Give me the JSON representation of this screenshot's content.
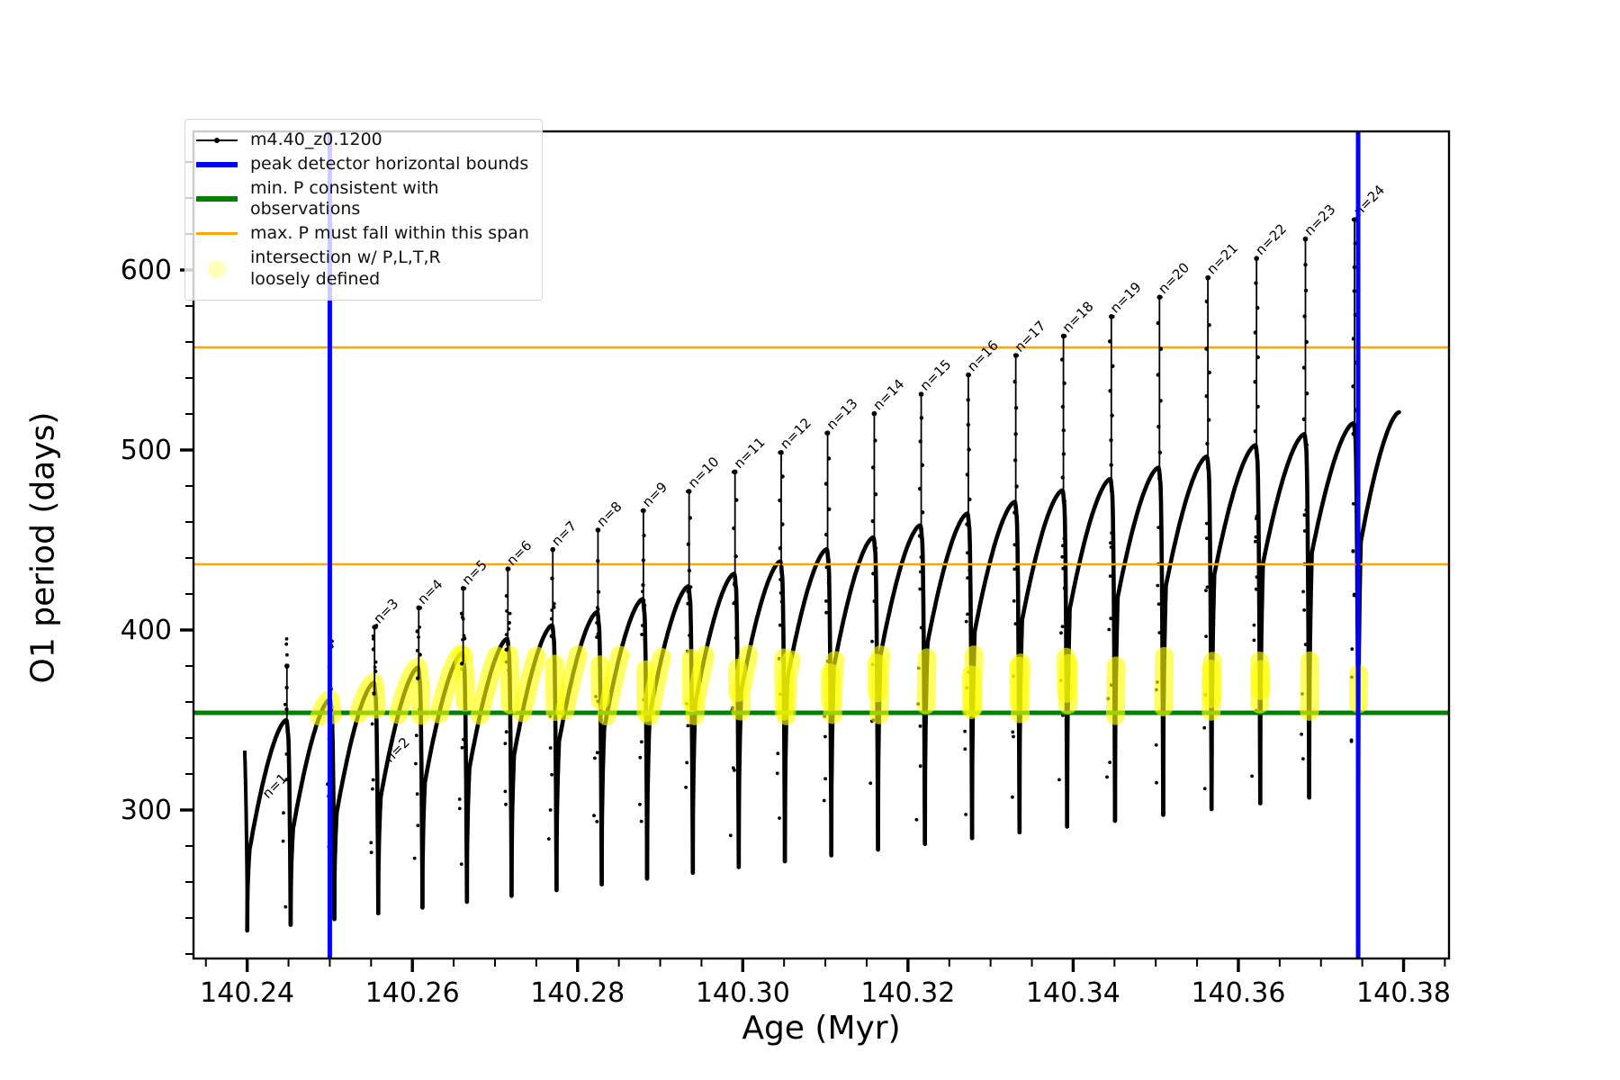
{
  "figure": {
    "background": "#ffffff",
    "frame_color": "#000000"
  },
  "axes": {
    "xlabel": "Age (Myr)",
    "ylabel": "O1 period (days)",
    "xlim": [
      140.2335,
      140.3855
    ],
    "ylim": [
      217.5,
      677.0
    ],
    "x_ticks": [
      {
        "v": 140.24,
        "label": "140.24"
      },
      {
        "v": 140.26,
        "label": "140.26"
      },
      {
        "v": 140.28,
        "label": "140.28"
      },
      {
        "v": 140.3,
        "label": "140.30"
      },
      {
        "v": 140.32,
        "label": "140.32"
      },
      {
        "v": 140.34,
        "label": "140.34"
      },
      {
        "v": 140.36,
        "label": "140.36"
      },
      {
        "v": 140.38,
        "label": "140.38"
      }
    ],
    "x_minor_step": 0.005,
    "y_ticks": [
      {
        "v": 300,
        "label": "300"
      },
      {
        "v": 400,
        "label": "400"
      },
      {
        "v": 500,
        "label": "500"
      },
      {
        "v": 600,
        "label": "600"
      }
    ],
    "y_minor_step": 20
  },
  "legend": {
    "items": [
      {
        "label": "m4.40_z0.1200",
        "color": "#000000",
        "type": "line-dot"
      },
      {
        "label": "peak detector horizontal bounds",
        "color": "#0000ff",
        "type": "thick-line"
      },
      {
        "label": "min. P consistent with observations",
        "color": "#008000",
        "type": "thick-line"
      },
      {
        "label": "max. P must fall within this span",
        "color": "#ffa500",
        "type": "line"
      },
      {
        "label": "intersection w/ P,L,T,R\nloosely defined",
        "color": "#ffff00",
        "type": "circle-marker"
      }
    ]
  },
  "chart_data": {
    "type": "line",
    "series_label": "m4.40_z0.1200",
    "colors": {
      "curve": "#000000",
      "peak_bounds": "#0000ff",
      "min_P": "#008000",
      "max_P": "#ffa500",
      "intersection": "#ffff00"
    },
    "vlines": [
      140.25,
      140.3745
    ],
    "hlines_green": [
      354.0
    ],
    "hlines_orange": [
      436.5,
      557.0
    ],
    "yellow_band": [
      352.0,
      386.5
    ],
    "start_stub": {
      "x0": 140.2397,
      "v0": 333,
      "x1": 140.24005,
      "v1": 233
    },
    "cycles": [
      {
        "d0": 140.24,
        "d1": 140.24526,
        "b0": 233.0,
        "b1": 236.2,
        "top": 350.0
      },
      {
        "d0": 140.24526,
        "d1": 140.25055,
        "b0": 236.2,
        "b1": 239.4,
        "top": 361.5
      },
      {
        "d0": 140.25055,
        "d1": 140.25587,
        "b0": 239.4,
        "b1": 242.6,
        "top": 370.7
      },
      {
        "d0": 140.25587,
        "d1": 140.26122,
        "b0": 242.6,
        "b1": 245.8,
        "top": 379.2
      },
      {
        "d0": 140.26122,
        "d1": 140.2666,
        "b0": 245.8,
        "b1": 249.0,
        "top": 387.3
      },
      {
        "d0": 140.2666,
        "d1": 140.27201,
        "b0": 249.0,
        "b1": 252.3,
        "top": 395.1
      },
      {
        "d0": 140.27201,
        "d1": 140.27745,
        "b0": 252.3,
        "b1": 255.5,
        "top": 402.6
      },
      {
        "d0": 140.27745,
        "d1": 140.28292,
        "b0": 255.5,
        "b1": 258.7,
        "top": 410.0
      },
      {
        "d0": 140.28292,
        "d1": 140.28842,
        "b0": 258.7,
        "b1": 261.9,
        "top": 417.2
      },
      {
        "d0": 140.28842,
        "d1": 140.29395,
        "b0": 261.9,
        "b1": 265.1,
        "top": 424.3
      },
      {
        "d0": 140.29395,
        "d1": 140.29951,
        "b0": 265.1,
        "b1": 268.3,
        "top": 431.3
      },
      {
        "d0": 140.29951,
        "d1": 140.3051,
        "b0": 268.3,
        "b1": 271.5,
        "top": 438.1
      },
      {
        "d0": 140.3051,
        "d1": 140.31072,
        "b0": 271.5,
        "b1": 274.8,
        "top": 444.9
      },
      {
        "d0": 140.31072,
        "d1": 140.31637,
        "b0": 274.8,
        "b1": 278.0,
        "top": 451.5
      },
      {
        "d0": 140.31637,
        "d1": 140.32205,
        "b0": 278.0,
        "b1": 281.2,
        "top": 458.2
      },
      {
        "d0": 140.32205,
        "d1": 140.32776,
        "b0": 281.2,
        "b1": 284.4,
        "top": 464.7
      },
      {
        "d0": 140.32776,
        "d1": 140.3335,
        "b0": 284.4,
        "b1": 287.6,
        "top": 471.2
      },
      {
        "d0": 140.3335,
        "d1": 140.33927,
        "b0": 287.6,
        "b1": 290.8,
        "top": 477.6
      },
      {
        "d0": 140.33927,
        "d1": 140.34507,
        "b0": 290.8,
        "b1": 294.0,
        "top": 483.9
      },
      {
        "d0": 140.34507,
        "d1": 140.3509,
        "b0": 294.0,
        "b1": 297.3,
        "top": 490.2
      },
      {
        "d0": 140.3509,
        "d1": 140.35676,
        "b0": 297.3,
        "b1": 300.5,
        "top": 496.4
      },
      {
        "d0": 140.35676,
        "d1": 140.36265,
        "b0": 300.5,
        "b1": 303.7,
        "top": 502.7
      },
      {
        "d0": 140.36265,
        "d1": 140.36857,
        "b0": 303.7,
        "b1": 306.9,
        "top": 508.8
      },
      {
        "d0": 140.36857,
        "d1": 140.37452,
        "b0": 306.9,
        "b1": 310.1,
        "top": 514.9
      },
      {
        "d0": 140.37452,
        "d1": 140.38,
        "b0": 310.1,
        "b1": null,
        "top": 521.0,
        "half": true
      }
    ],
    "peaks": [
      {
        "n": 1,
        "x": 140.24481,
        "top": 380.0,
        "label": "n=1"
      },
      {
        "n": 2,
        "x": 140.2501,
        "top": 390.8,
        "label": "n=2"
      },
      {
        "n": 3,
        "x": 140.25542,
        "top": 401.6,
        "label": "n=3"
      },
      {
        "n": 4,
        "x": 140.26077,
        "top": 412.3,
        "label": "n=4"
      },
      {
        "n": 5,
        "x": 140.26615,
        "top": 423.1,
        "label": "n=5"
      },
      {
        "n": 6,
        "x": 140.27156,
        "top": 433.9,
        "label": "n=6"
      },
      {
        "n": 7,
        "x": 140.277,
        "top": 444.7,
        "label": "n=7"
      },
      {
        "n": 8,
        "x": 140.28247,
        "top": 455.5,
        "label": "n=8"
      },
      {
        "n": 9,
        "x": 140.28797,
        "top": 466.3,
        "label": "n=9"
      },
      {
        "n": 10,
        "x": 140.2935,
        "top": 477.0,
        "label": "n=10"
      },
      {
        "n": 11,
        "x": 140.29906,
        "top": 487.8,
        "label": "n=11"
      },
      {
        "n": 12,
        "x": 140.30465,
        "top": 498.6,
        "label": "n=12"
      },
      {
        "n": 13,
        "x": 140.31027,
        "top": 509.4,
        "label": "n=13"
      },
      {
        "n": 14,
        "x": 140.31592,
        "top": 520.2,
        "label": "n=14"
      },
      {
        "n": 15,
        "x": 140.3216,
        "top": 531.0,
        "label": "n=15"
      },
      {
        "n": 16,
        "x": 140.32731,
        "top": 541.7,
        "label": "n=16"
      },
      {
        "n": 17,
        "x": 140.33305,
        "top": 552.5,
        "label": "n=17"
      },
      {
        "n": 18,
        "x": 140.33882,
        "top": 563.3,
        "label": "n=18"
      },
      {
        "n": 19,
        "x": 140.34462,
        "top": 574.1,
        "label": "n=19"
      },
      {
        "n": 20,
        "x": 140.35045,
        "top": 584.9,
        "label": "n=20"
      },
      {
        "n": 21,
        "x": 140.35631,
        "top": 595.7,
        "label": "n=21"
      },
      {
        "n": 22,
        "x": 140.3622,
        "top": 606.4,
        "label": "n=22"
      },
      {
        "n": 23,
        "x": 140.36812,
        "top": 617.2,
        "label": "n=23"
      },
      {
        "n": 24,
        "x": 140.37407,
        "top": 628.0,
        "label": "n=24"
      }
    ],
    "label_overrides": {
      "1": [
        140.2422,
        306
      ],
      "2": [
        140.257,
        326
      ]
    }
  }
}
